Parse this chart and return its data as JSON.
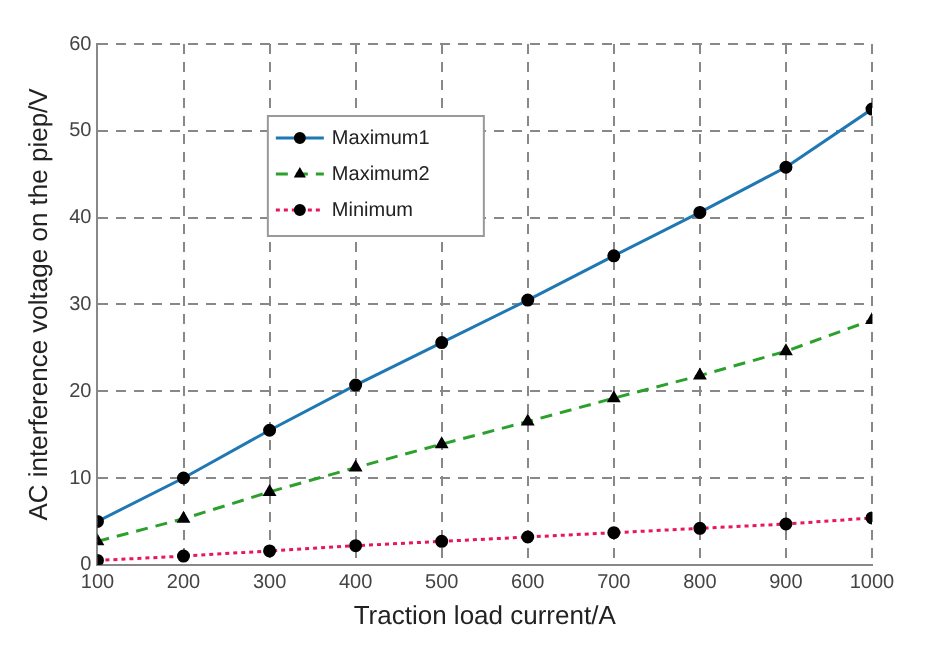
{
  "chart_data": {
    "type": "line",
    "xlabel": "Traction load current/A",
    "ylabel": "AC interference voltage on the piep/V",
    "x": [
      100,
      200,
      300,
      400,
      500,
      600,
      700,
      800,
      900,
      1000
    ],
    "xlim": [
      100,
      1000
    ],
    "xticks": [
      100,
      200,
      300,
      400,
      500,
      600,
      700,
      800,
      900,
      1000
    ],
    "ylim": [
      0,
      60
    ],
    "yticks": [
      0,
      10,
      20,
      30,
      40,
      50,
      60
    ],
    "grid": true,
    "legend": "top left",
    "series": [
      {
        "name": "Maximum1",
        "color": "#1f77b4",
        "marker": "circle",
        "line_style": "solid",
        "values": [
          5,
          10,
          15.5,
          20.7,
          25.6,
          30.5,
          35.6,
          40.6,
          45.8,
          52.5
        ]
      },
      {
        "name": "Maximum2",
        "color": "#2ca02c",
        "marker": "triangle",
        "line_style": "dashed",
        "values": [
          2.7,
          5.3,
          8.4,
          11.2,
          13.9,
          16.5,
          19.2,
          21.8,
          24.6,
          28.2
        ]
      },
      {
        "name": "Minimum",
        "color": "#e8175d",
        "marker": "circle",
        "line_style": "dotted",
        "values": [
          0.5,
          1,
          1.6,
          2.2,
          2.7,
          3.2,
          3.7,
          4.2,
          4.7,
          5.4
        ]
      }
    ]
  }
}
